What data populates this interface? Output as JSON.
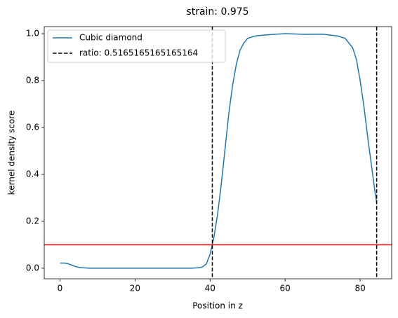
{
  "chart_data": {
    "type": "line",
    "title": "strain: 0.975",
    "x_label": "Position in z",
    "y_label": "kernel density score",
    "series": [
      {
        "name": "Cubic diamond",
        "color": "#1f77b4",
        "x": [
          0,
          1,
          2,
          3,
          4,
          5,
          6,
          8,
          10,
          15,
          20,
          25,
          30,
          35,
          37,
          38,
          39,
          40,
          41,
          42,
          43,
          44,
          45,
          46,
          47,
          48,
          49,
          50,
          52,
          55,
          60,
          65,
          70,
          74,
          76,
          78,
          79,
          80,
          81,
          82,
          83,
          84,
          84.4
        ],
        "values": [
          0.022,
          0.022,
          0.02,
          0.014,
          0.008,
          0.004,
          0.002,
          0,
          0,
          0,
          0,
          0,
          0,
          0,
          0.002,
          0.006,
          0.018,
          0.06,
          0.13,
          0.23,
          0.36,
          0.51,
          0.66,
          0.78,
          0.87,
          0.93,
          0.96,
          0.98,
          0.99,
          0.995,
          1.0,
          0.997,
          0.998,
          0.99,
          0.98,
          0.94,
          0.89,
          0.8,
          0.69,
          0.56,
          0.44,
          0.32,
          0.28
        ]
      }
    ],
    "vlines": {
      "name": "ratio: 0.5165165165165164",
      "color": "#000000",
      "values": [
        40.6,
        84.4
      ]
    },
    "hline": {
      "color": "#ff0000",
      "value": 0.1
    },
    "xlim": [
      -4.2,
      88.4
    ],
    "ylim": [
      -0.045,
      1.03
    ],
    "xticks": [
      0,
      20,
      40,
      60,
      80
    ],
    "yticks": [
      {
        "value": 0,
        "label": "0.0"
      },
      0.2,
      0.4,
      0.6,
      0.8,
      {
        "value": 1,
        "label": "1.0"
      }
    ],
    "legend": "upper left"
  }
}
